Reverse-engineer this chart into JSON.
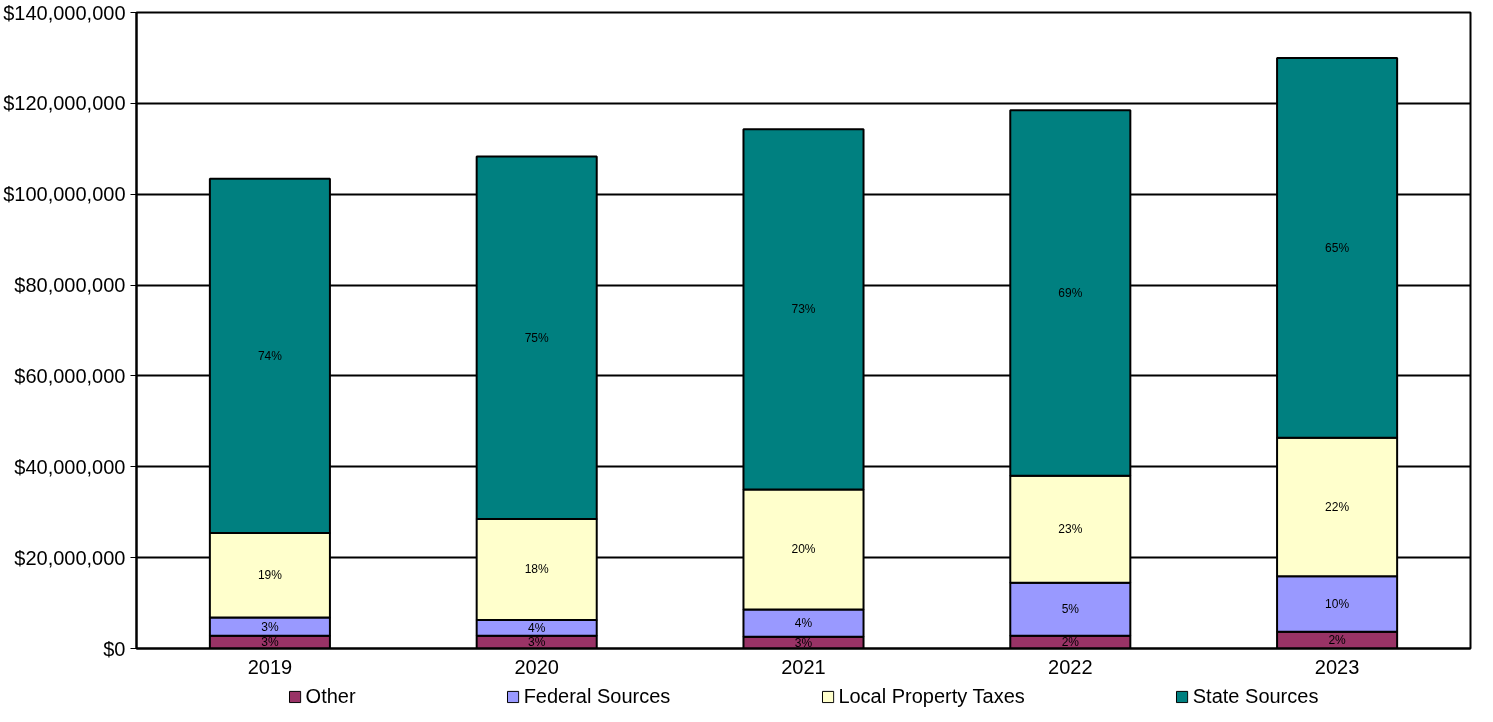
{
  "chart_data": {
    "type": "bar",
    "stacked": true,
    "categories": [
      "2019",
      "2020",
      "2021",
      "2022",
      "2023"
    ],
    "series": [
      {
        "name": "Other",
        "color": "#993366",
        "values": [
          2800000.0,
          2800000.0,
          2600000.0,
          2800000.0,
          3700000.0
        ]
      },
      {
        "name": "Federal Sources",
        "color": "#9999ff",
        "values": [
          4000000.0,
          3500000.0,
          6000000.0,
          11700000.0,
          12200000.0
        ]
      },
      {
        "name": "Local Property Taxes",
        "color": "#ffffcc",
        "values": [
          18600000.0,
          22200000.0,
          26400000.0,
          23500000.0,
          30500000.0
        ]
      },
      {
        "name": "State Sources",
        "color": "#008080",
        "values": [
          78000000.0,
          79800000.0,
          79300000.0,
          80500000.0,
          83600000.0
        ]
      }
    ],
    "annotations": [
      "3%",
      "3%",
      "19%",
      "74%",
      "3%",
      "4%",
      "18%",
      "75%",
      "3%",
      "4%",
      "20%",
      "73%",
      "2%",
      "5%",
      "23%",
      "69%",
      "2%",
      "10%",
      "22%",
      "65%"
    ],
    "ylim": [
      0,
      140000000
    ],
    "yticks": [
      {
        "value": 0,
        "label": "$0"
      },
      {
        "value": 20000000,
        "label": "$20,000,000"
      },
      {
        "value": 40000000,
        "label": "$40,000,000"
      },
      {
        "value": 60000000,
        "label": "$60,000,000"
      },
      {
        "value": 80000000,
        "label": "$80,000,000"
      },
      {
        "value": 100000000,
        "label": "$100,000,000"
      },
      {
        "value": 120000000,
        "label": "$120,000,000"
      },
      {
        "value": 140000000,
        "label": "$140,000,000"
      }
    ],
    "grid": "y",
    "legend": "bottom"
  }
}
